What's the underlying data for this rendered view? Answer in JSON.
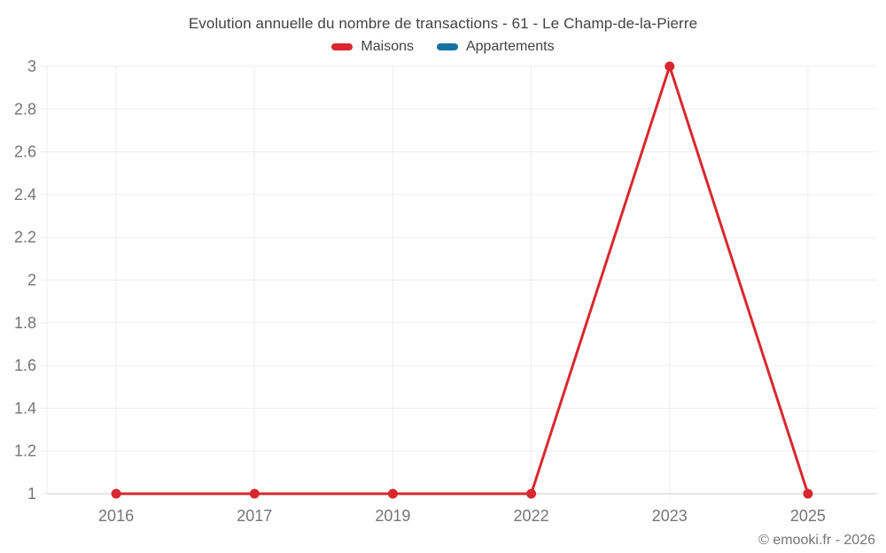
{
  "title": "Evolution annuelle du nombre de transactions - 61 - Le Champ-de-la-Pierre",
  "legend": {
    "items": [
      {
        "label": "Maisons",
        "color": "#d8282e"
      },
      {
        "label": "Appartements",
        "color": "#1471a1"
      }
    ]
  },
  "footer": {
    "copyright": "© emooki.fr - 2026"
  },
  "colors": {
    "maisons": "#d8282e",
    "appartements": "#1471a1",
    "gridline": "#ededed",
    "axis_line": "#cccccc",
    "tick_label": "#757575",
    "title_text": "#424242"
  },
  "chart_data": {
    "type": "line",
    "title": "Evolution annuelle du nombre de transactions - 61 - Le Champ-de-la-Pierre",
    "categories": [
      "2016",
      "2017",
      "2019",
      "2022",
      "2023",
      "2025"
    ],
    "series": [
      {
        "name": "Maisons",
        "color": "#d8282e",
        "values": [
          1,
          1,
          1,
          1,
          3,
          1
        ]
      },
      {
        "name": "Appartements",
        "color": "#1471a1",
        "values": [
          null,
          null,
          null,
          null,
          null,
          null
        ]
      }
    ],
    "xlabel": "",
    "ylabel": "",
    "ylim": [
      1,
      3
    ],
    "ytick_step": 0.2,
    "ytick_labels": [
      "1",
      "1.2",
      "1.4",
      "1.6",
      "1.8",
      "2",
      "2.2",
      "2.4",
      "2.6",
      "2.8",
      "3"
    ],
    "grid": true,
    "legend_position": "top"
  }
}
